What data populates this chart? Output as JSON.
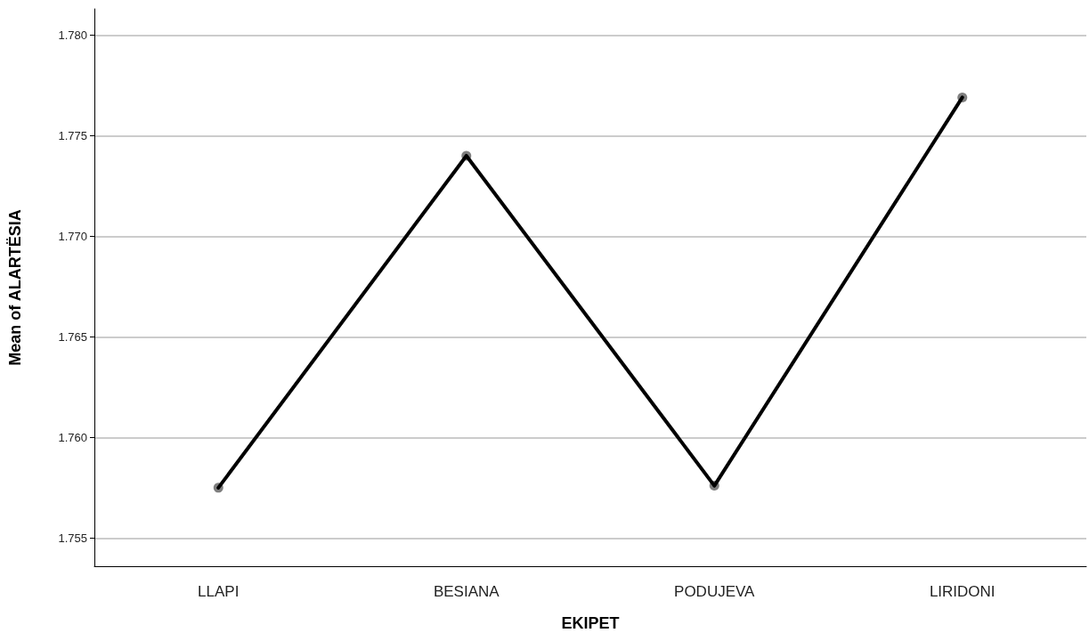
{
  "chart_data": {
    "type": "line",
    "xlabel": "EKIPET",
    "ylabel": "Mean of ALARTËSIA",
    "categories": [
      "LLAPI",
      "BESIANA",
      "PODUJEVA",
      "LIRIDONI"
    ],
    "series": [
      {
        "color": "#000000",
        "values": [
          1.7575,
          1.774,
          1.7576,
          1.7769
        ]
      }
    ],
    "ylim": [
      1.7536,
      1.7813
    ],
    "yticks": [
      {
        "value": 1.755,
        "label": "1.755"
      },
      {
        "value": 1.76,
        "label": "1.760"
      },
      {
        "value": 1.765,
        "label": "1.765"
      },
      {
        "value": 1.77,
        "label": "1.770"
      },
      {
        "value": 1.775,
        "label": "1.775"
      },
      {
        "value": 1.78,
        "label": "1.780"
      }
    ],
    "grid": "y",
    "marker": "circle",
    "line_style": "solid"
  }
}
